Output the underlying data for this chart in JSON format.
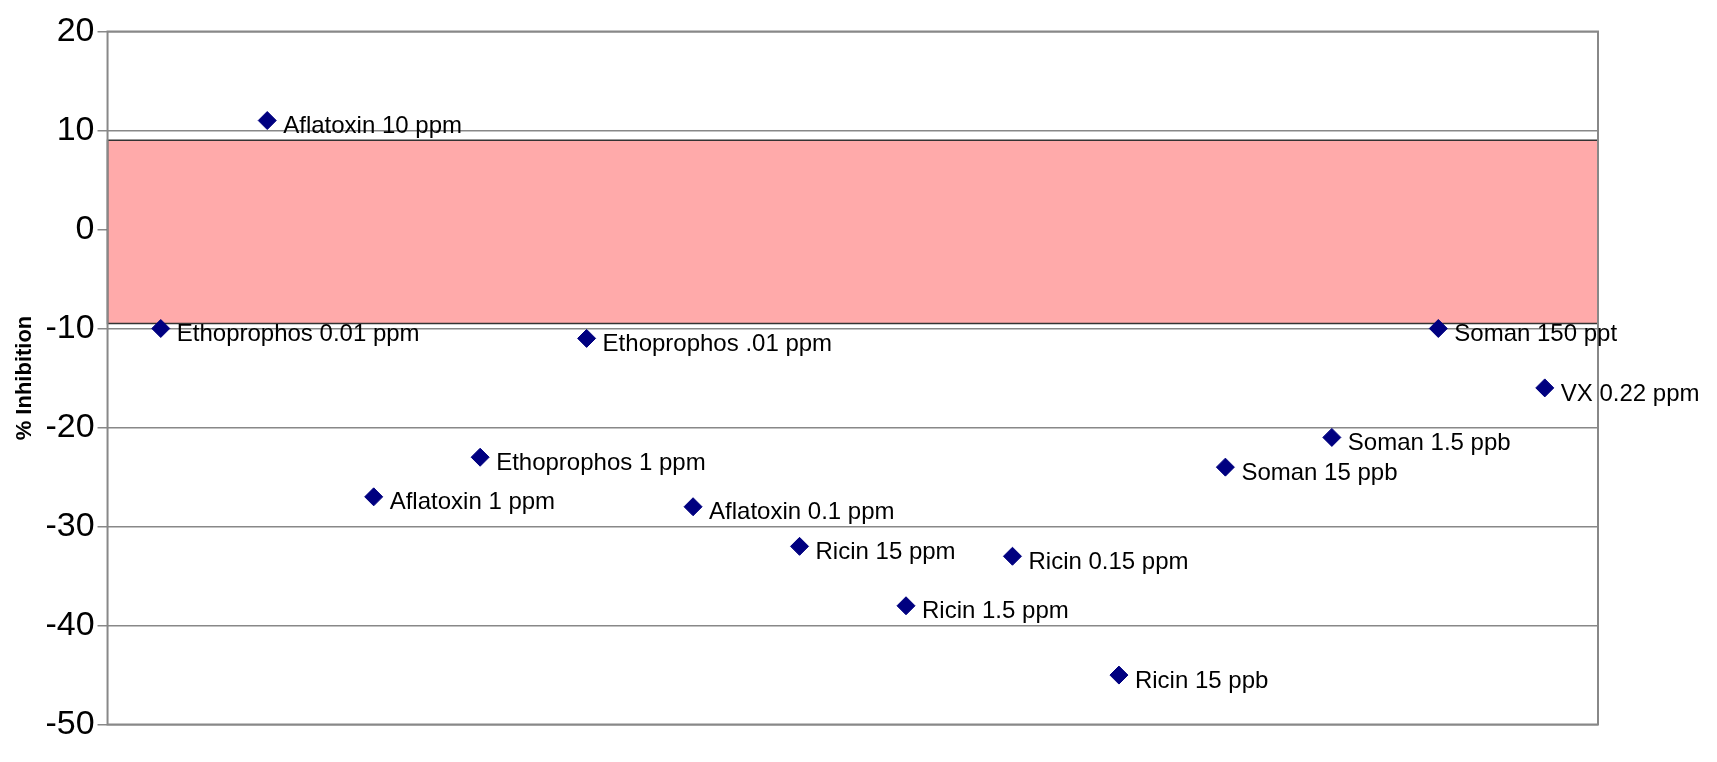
{
  "chart_data": {
    "type": "scatter",
    "ylabel": "% Inhibition",
    "categories": [
      null,
      null,
      null,
      null,
      null,
      null,
      null,
      null,
      null,
      null,
      null,
      null,
      null,
      null
    ],
    "ylim": [
      -50,
      20
    ],
    "yticks": [
      -50,
      -40,
      -30,
      -20,
      -10,
      0,
      10,
      20
    ],
    "grid": "y",
    "marker": "diamond",
    "series": [
      {
        "color": "#000080",
        "values": [
          -10,
          11,
          -27,
          -23,
          -11,
          -28,
          -32,
          -38,
          -33,
          -45,
          -24,
          -21,
          -10,
          -16
        ],
        "value_labels": [
          "Ethoprophos 0.01 ppm",
          "Aflatoxin 10 ppm",
          "Aflatoxin 1 ppm",
          "Ethoprophos 1 ppm",
          "Ethoprophos .01 ppm",
          "Aflatoxin 0.1 ppm",
          "Ricin 15 ppm",
          "Ricin 1.5 ppm",
          "Ricin 0.15 ppm",
          "Ricin 15 ppb",
          "Soman 15 ppb",
          "Soman 1.5 ppb",
          "Soman 150 ppt",
          "VX 0.22 ppm"
        ]
      }
    ],
    "bands": [
      {
        "axis": "y",
        "from": -9.5,
        "to": 9,
        "color": "#ffaaaa"
      }
    ]
  }
}
